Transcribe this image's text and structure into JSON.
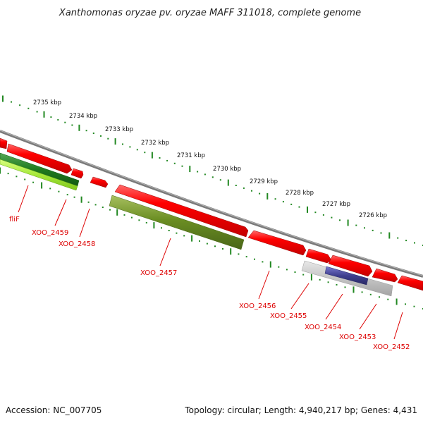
{
  "title": "Xanthomonas oryzae pv. oryzae MAFF 311018, complete genome",
  "footer": {
    "accession": "Accession: NC_007705",
    "summary": "Topology: circular; Length: 4,940,217 bp; Genes: 4,431"
  },
  "ruler": {
    "labels": [
      "2735 kbp",
      "2734 kbp",
      "2733 kbp",
      "2732 kbp",
      "2731 kbp",
      "2730 kbp",
      "2729 kbp",
      "2728 kbp",
      "2727 kbp",
      "2726 kbp"
    ]
  },
  "genes": [
    {
      "label": "fliF"
    },
    {
      "label": "XOO_2459"
    },
    {
      "label": "XOO_2458"
    },
    {
      "label": "XOO_2457"
    },
    {
      "label": "XOO_2456"
    },
    {
      "label": "XOO_2455"
    },
    {
      "label": "XOO_2454"
    },
    {
      "label": "XOO_2453"
    },
    {
      "label": "XOO_2452"
    }
  ],
  "colors": {
    "backbone": "#888888",
    "cds": "#ff0000",
    "ruler": "#228822",
    "label": "#dd0000",
    "feature_green": "#2e8b2e",
    "feature_light_green": "#aaee44",
    "feature_olive": "#6b8e23",
    "feature_grey": "#c0c0c0",
    "feature_navy": "#3f3f8f"
  }
}
